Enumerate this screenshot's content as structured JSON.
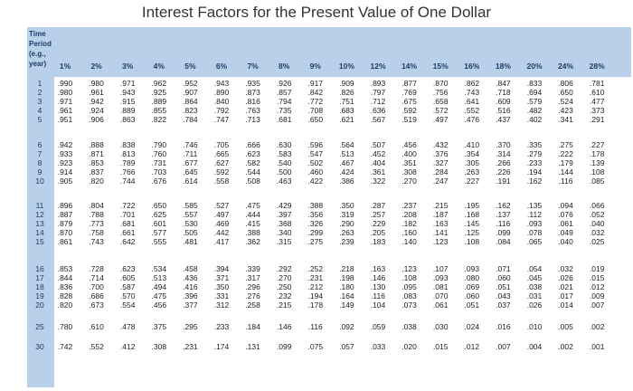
{
  "title": "Interest Factors for the Present Value of One Dollar",
  "stub_header": [
    "Time",
    "Period",
    "(e.g.,",
    "year)"
  ],
  "rates": [
    "1%",
    "2%",
    "3%",
    "4%",
    "5%",
    "6%",
    "7%",
    "8%",
    "9%",
    "10%",
    "12%",
    "14%",
    "15%",
    "16%",
    "18%",
    "20%",
    "24%",
    "28%"
  ],
  "rows": [
    {
      "year": "1",
      "values": [
        ".990",
        ".980",
        ".971",
        ".962",
        ".952",
        ".943",
        ".935",
        ".926",
        ".917",
        ".909",
        ".893",
        ".877",
        ".870",
        ".862",
        ".847",
        ".833",
        ".806",
        ".781"
      ]
    },
    {
      "year": "2",
      "values": [
        ".980",
        ".961",
        ".943",
        ".925",
        ".907",
        ".890",
        ".873",
        ".857",
        ".842",
        ".826",
        ".797",
        ".769",
        ".756",
        ".743",
        ".718",
        ".694",
        ".650",
        ".610"
      ]
    },
    {
      "year": "3",
      "values": [
        ".971",
        ".942",
        ".915",
        ".889",
        ".864",
        ".840",
        ".816",
        ".794",
        ".772",
        ".751",
        ".712",
        ".675",
        ".658",
        ".641",
        ".609",
        ".579",
        ".524",
        ".477"
      ]
    },
    {
      "year": "4",
      "values": [
        ".961",
        ".924",
        ".889",
        ".855",
        ".823",
        ".792",
        ".763",
        ".735",
        ".708",
        ".683",
        ".636",
        ".592",
        ".572",
        ".552",
        ".516",
        ".482",
        ".423",
        ".373"
      ]
    },
    {
      "year": "5",
      "values": [
        ".951",
        ".906",
        ".863",
        ".822",
        ".784",
        ".747",
        ".713",
        ".681",
        ".650",
        ".621",
        ".567",
        ".519",
        ".497",
        ".476",
        ".437",
        ".402",
        ".341",
        ".291"
      ]
    },
    {
      "year": "6",
      "values": [
        ".942",
        ".888",
        ".838",
        ".790",
        ".746",
        ".705",
        ".666",
        ".630",
        ".596",
        ".564",
        ".507",
        ".456",
        ".432",
        ".410",
        ".370",
        ".335",
        ".275",
        ".227"
      ]
    },
    {
      "year": "7",
      "values": [
        ".933",
        ".871",
        ".813",
        ".760",
        ".711",
        ".665",
        ".623",
        ".583",
        ".547",
        ".513",
        ".452",
        ".400",
        ".376",
        ".354",
        ".314",
        ".279",
        ".222",
        ".178"
      ]
    },
    {
      "year": "8",
      "values": [
        ".923",
        ".853",
        ".789",
        ".731",
        ".677",
        ".627",
        ".582",
        ".540",
        ".502",
        ".467",
        ".404",
        ".351",
        ".327",
        ".305",
        ".266",
        ".233",
        ".179",
        ".139"
      ]
    },
    {
      "year": "9",
      "values": [
        ".914",
        ".837",
        ".766",
        ".703",
        ".645",
        ".592",
        ".544",
        ".500",
        ".460",
        ".424",
        ".361",
        ".308",
        ".284",
        ".263",
        ".226",
        ".194",
        ".144",
        ".108"
      ]
    },
    {
      "year": "10",
      "values": [
        ".905",
        ".820",
        ".744",
        ".676",
        ".614",
        ".558",
        ".508",
        ".463",
        ".422",
        ".386",
        ".322",
        ".270",
        ".247",
        ".227",
        ".191",
        ".162",
        ".116",
        ".085"
      ]
    },
    {
      "year": "11",
      "values": [
        ".896",
        ".804",
        ".722",
        ".650",
        ".585",
        ".527",
        ".475",
        ".429",
        ".388",
        ".350",
        ".287",
        ".237",
        ".215",
        ".195",
        ".162",
        ".135",
        ".094",
        ".066"
      ]
    },
    {
      "year": "12",
      "values": [
        ".887",
        ".788",
        ".701",
        ".625",
        ".557",
        ".497",
        ".444",
        ".397",
        ".356",
        ".319",
        ".257",
        ".208",
        ".187",
        ".168",
        ".137",
        ".112",
        ".076",
        ".052"
      ]
    },
    {
      "year": "13",
      "values": [
        ".879",
        ".773",
        ".681",
        ".601",
        ".530",
        ".469",
        ".415",
        ".368",
        ".326",
        ".290",
        ".229",
        ".182",
        ".163",
        ".145",
        ".116",
        ".093",
        ".061",
        ".040"
      ]
    },
    {
      "year": "14",
      "values": [
        ".870",
        ".758",
        ".661",
        ".577",
        ".505",
        ".442",
        ".388",
        ".340",
        ".299",
        ".263",
        ".205",
        ".160",
        ".141",
        ".125",
        ".099",
        ".078",
        ".049",
        ".032"
      ]
    },
    {
      "year": "15",
      "values": [
        ".861",
        ".743",
        ".642",
        ".555",
        ".481",
        ".417",
        ".362",
        ".315",
        ".275",
        ".239",
        ".183",
        ".140",
        ".123",
        ".108",
        ".084",
        ".065",
        ".040",
        ".025"
      ]
    },
    {
      "year": "16",
      "values": [
        ".853",
        ".728",
        ".623",
        ".534",
        ".458",
        ".394",
        ".339",
        ".292",
        ".252",
        ".218",
        ".163",
        ".123",
        ".107",
        ".093",
        ".071",
        ".054",
        ".032",
        ".019"
      ]
    },
    {
      "year": "17",
      "values": [
        ".844",
        ".714",
        ".605",
        ".513",
        ".436",
        ".371",
        ".317",
        ".270",
        ".231",
        ".198",
        ".146",
        ".108",
        ".093",
        ".080",
        ".060",
        ".045",
        ".026",
        ".015"
      ]
    },
    {
      "year": "18",
      "values": [
        ".836",
        ".700",
        ".587",
        ".494",
        ".416",
        ".350",
        ".296",
        ".250",
        ".212",
        ".180",
        ".130",
        ".095",
        ".081",
        ".069",
        ".051",
        ".038",
        ".021",
        ".012"
      ]
    },
    {
      "year": "19",
      "values": [
        ".828",
        ".686",
        ".570",
        ".475",
        ".396",
        ".331",
        ".276",
        ".232",
        ".194",
        ".164",
        ".116",
        ".083",
        ".070",
        ".060",
        ".043",
        ".031",
        ".017",
        ".009"
      ]
    },
    {
      "year": "20",
      "values": [
        ".820",
        ".673",
        ".554",
        ".456",
        ".377",
        ".312",
        ".258",
        ".215",
        ".178",
        ".149",
        ".104",
        ".073",
        ".061",
        ".051",
        ".037",
        ".026",
        ".014",
        ".007"
      ]
    },
    {
      "year": "25",
      "values": [
        ".780",
        ".610",
        ".478",
        ".375",
        ".295",
        ".233",
        ".184",
        ".146",
        ".116",
        ".092",
        ".059",
        ".038",
        ".030",
        ".024",
        ".016",
        ".010",
        ".005",
        ".002"
      ]
    },
    {
      "year": "30",
      "values": [
        ".742",
        ".552",
        ".412",
        ".308",
        ".231",
        ".174",
        ".131",
        ".099",
        ".075",
        ".057",
        ".033",
        ".020",
        ".015",
        ".012",
        ".007",
        ".004",
        ".002",
        ".001"
      ]
    }
  ],
  "colors": {
    "header_band": "#b9d0ea",
    "header_text": "#1d3b66"
  }
}
